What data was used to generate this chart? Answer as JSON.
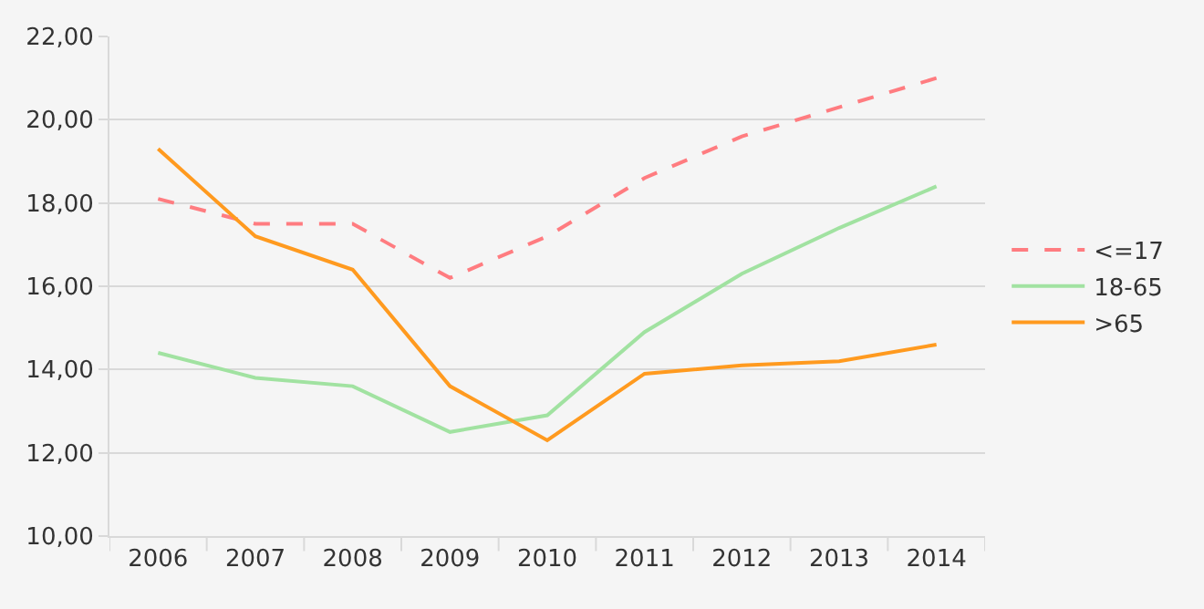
{
  "chart_data": {
    "type": "line",
    "categories": [
      "2006",
      "2007",
      "2008",
      "2009",
      "2010",
      "2011",
      "2012",
      "2013",
      "2014"
    ],
    "series": [
      {
        "name": "<=17",
        "color": "#ff7c80",
        "line_style": "dashed",
        "values": [
          18.1,
          17.5,
          17.5,
          16.2,
          17.2,
          18.6,
          19.6,
          20.3,
          21.0
        ]
      },
      {
        "name": "18-65",
        "color": "#a1e2a1",
        "line_style": "solid",
        "values": [
          14.4,
          13.8,
          13.6,
          12.5,
          12.9,
          14.9,
          16.3,
          17.4,
          18.4
        ]
      },
      {
        "name": ">65",
        "color": "#ff9a1f",
        "line_style": "solid",
        "values": [
          19.3,
          17.2,
          16.4,
          13.6,
          12.3,
          13.9,
          14.1,
          14.2,
          14.6
        ]
      }
    ],
    "ylim": [
      10,
      22
    ],
    "yticks": [
      {
        "value": 10,
        "label": "10,00"
      },
      {
        "value": 12,
        "label": "12,00"
      },
      {
        "value": 14,
        "label": "14,00"
      },
      {
        "value": 16,
        "label": "16,00"
      },
      {
        "value": 18,
        "label": "18,00"
      },
      {
        "value": 20,
        "label": "20,00"
      },
      {
        "value": 22,
        "label": "22,00"
      }
    ],
    "grid": "y",
    "legend": "right",
    "marker": "none"
  }
}
